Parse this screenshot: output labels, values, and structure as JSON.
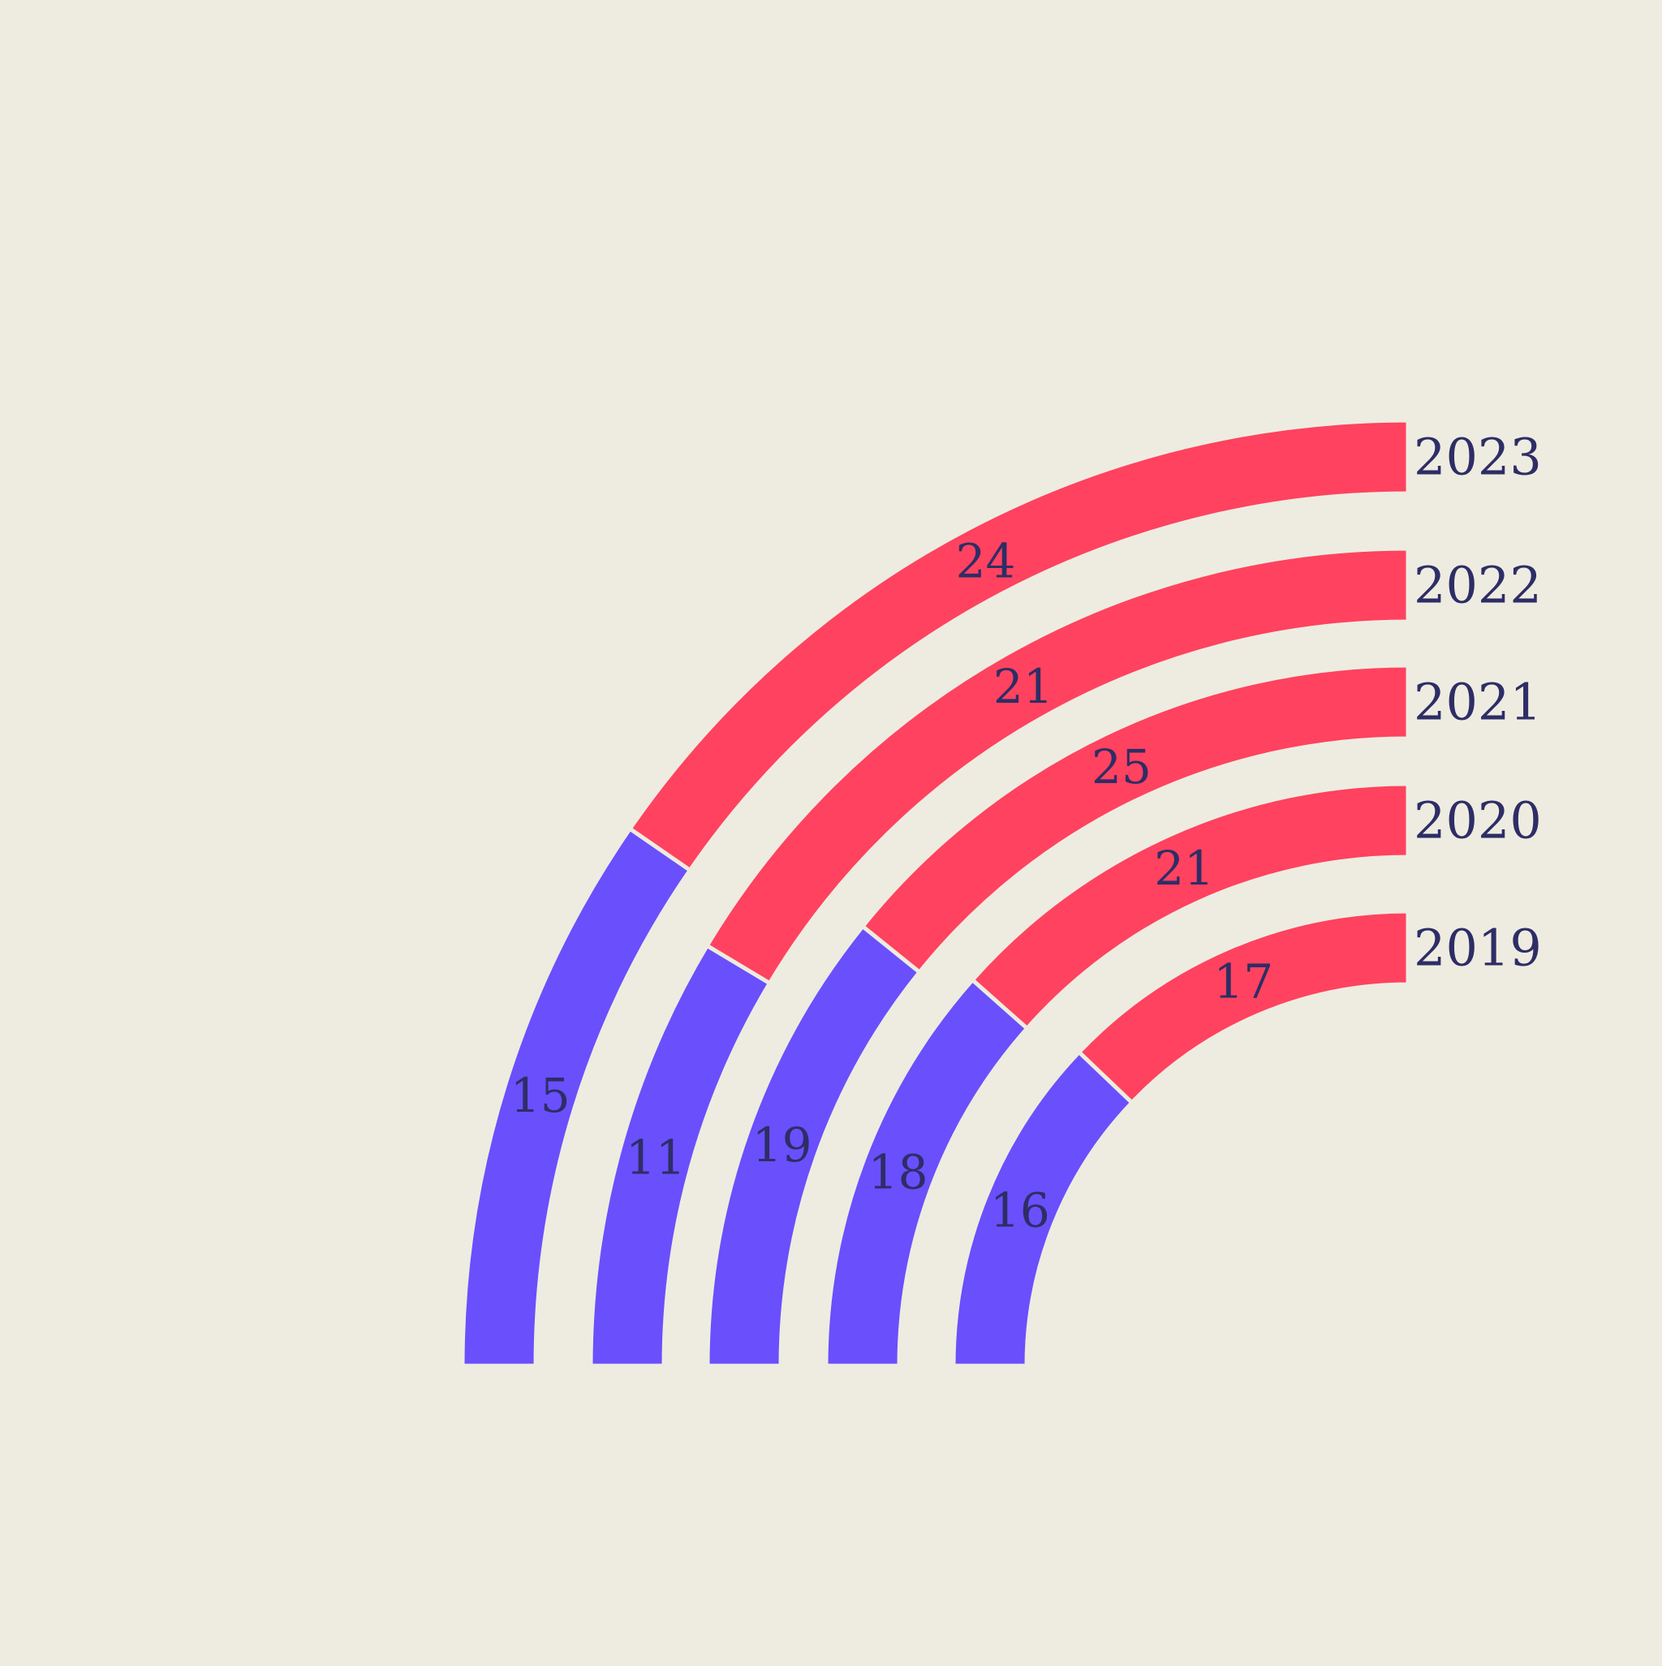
{
  "chart_data": {
    "type": "radial-stacked-bar",
    "title": "",
    "categories": [
      "2023",
      "2022",
      "2021",
      "2020",
      "2019"
    ],
    "series": [
      {
        "values": [
          15,
          11,
          19,
          18,
          16
        ]
      },
      {
        "values": [
          24,
          21,
          25,
          21,
          17
        ]
      }
    ],
    "totals_are_quarter_circle": true,
    "legend": "none",
    "grid": false
  },
  "colors": {
    "background": "#eeece0",
    "first_segment": "#6a4ffc",
    "second_segment": "#ff425f",
    "text": "#2e2d66"
  }
}
